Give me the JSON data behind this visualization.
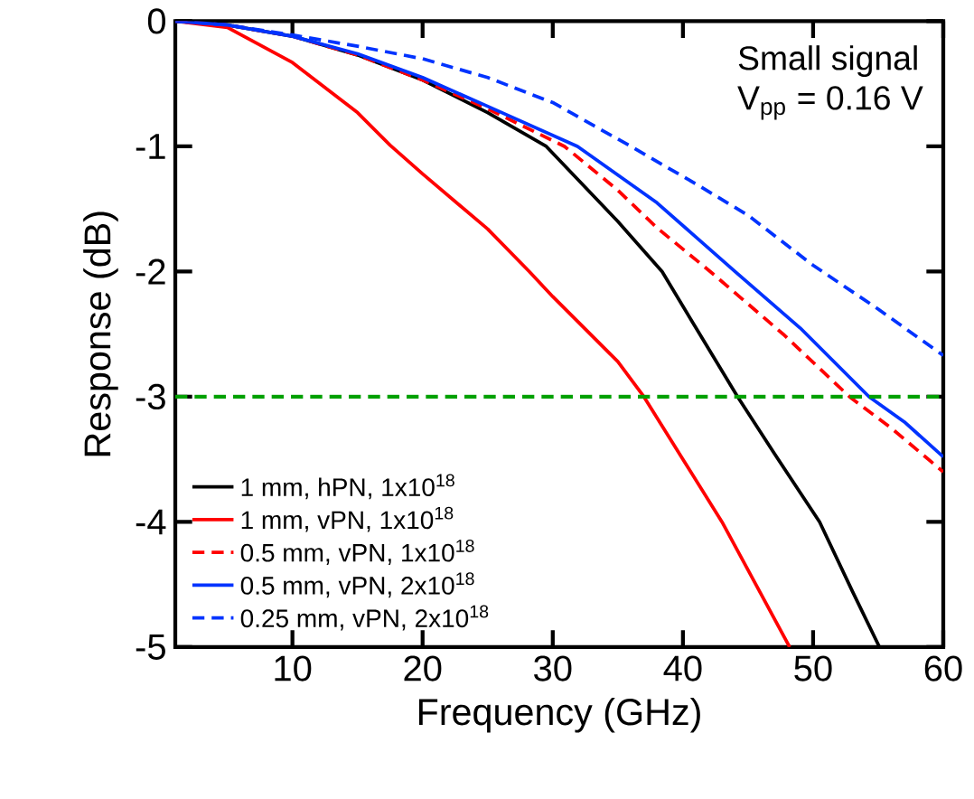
{
  "chart_data": {
    "type": "line",
    "xlabel": "Frequency (GHz)",
    "ylabel": "Response (dB)",
    "xlim": [
      1,
      60
    ],
    "ylim": [
      -5,
      0
    ],
    "xticks": [
      10,
      20,
      30,
      40,
      50,
      60
    ],
    "yticks": [
      -5,
      -4,
      -3,
      -2,
      -1,
      0
    ],
    "legend": "bottom left",
    "grid": false,
    "annotations": [
      "Small signal",
      "V$_{pp}$ = 0.16 V"
    ],
    "ref_lines": [
      {
        "axis": "y",
        "value": -3,
        "color": "#00a000",
        "line_style": "dashed"
      }
    ],
    "series": [
      {
        "name": "1 mm, hPN, 1x10$^{18}$",
        "color": "#000000",
        "line_style": "solid",
        "x": [
          1,
          5,
          10,
          15,
          20,
          25,
          29.5,
          35,
          38.4,
          41,
          44.2,
          47,
          50.5,
          53,
          55.1
        ],
        "values": [
          0,
          -0.03,
          -0.12,
          -0.27,
          -0.47,
          -0.73,
          -1,
          -1.6,
          -2,
          -2.45,
          -3,
          -3.45,
          -4,
          -4.55,
          -5
        ]
      },
      {
        "name": "1 mm, vPN, 1x10$^{18}$",
        "color": "#ff0000",
        "line_style": "solid",
        "x": [
          1,
          5,
          10,
          15,
          17.5,
          20,
          25,
          28.2,
          30,
          35,
          37,
          40,
          43,
          45.6,
          48.2
        ],
        "values": [
          0,
          -0.05,
          -0.33,
          -0.73,
          -0.99,
          -1.22,
          -1.66,
          -2,
          -2.2,
          -2.72,
          -3,
          -3.5,
          -4,
          -4.5,
          -5
        ]
      },
      {
        "name": "0.5 mm, vPN, 1x10$^{18}$",
        "color": "#ff0000",
        "line_style": "dashed",
        "x": [
          1,
          5,
          10,
          15,
          20,
          25,
          30.9,
          35,
          38,
          42.1,
          47.7,
          52.8,
          56,
          60
        ],
        "values": [
          0,
          -0.03,
          -0.12,
          -0.27,
          -0.47,
          -0.7,
          -1,
          -1.35,
          -1.65,
          -2,
          -2.5,
          -3,
          -3.25,
          -3.6
        ]
      },
      {
        "name": "0.5 mm, vPN, 2x10$^{18}$",
        "color": "#0033ff",
        "line_style": "solid",
        "x": [
          1,
          5,
          10,
          15,
          20,
          25,
          31.9,
          38,
          44,
          49,
          54.3,
          57,
          60
        ],
        "values": [
          0,
          -0.03,
          -0.12,
          -0.26,
          -0.45,
          -0.68,
          -1,
          -1.45,
          -2,
          -2.45,
          -3,
          -3.2,
          -3.48
        ]
      },
      {
        "name": "0.25 mm, vPN, 2x10$^{18}$",
        "color": "#0033ff",
        "line_style": "dashed",
        "x": [
          1,
          5,
          10,
          15,
          20,
          25,
          30,
          36,
          41,
          45,
          50,
          55,
          60
        ],
        "values": [
          0,
          -0.03,
          -0.11,
          -0.2,
          -0.3,
          -0.45,
          -0.65,
          -1,
          -1.3,
          -1.55,
          -1.95,
          -2.3,
          -2.67
        ]
      }
    ]
  }
}
